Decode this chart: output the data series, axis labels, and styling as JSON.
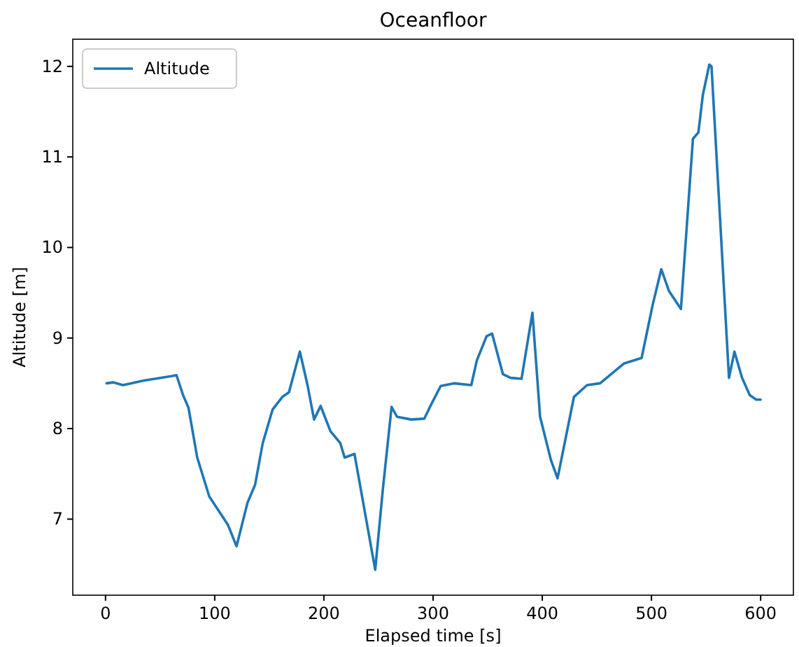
{
  "chart_data": {
    "type": "line",
    "title": "Oceanfloor",
    "xlabel": "Elapsed time [s]",
    "ylabel": "Altitude [m]",
    "legend": "top left",
    "xlim": [
      -30,
      630
    ],
    "ylim": [
      6.16,
      12.3
    ],
    "xticks": [
      0,
      100,
      200,
      300,
      400,
      500,
      600
    ],
    "yticks": [
      7,
      8,
      9,
      10,
      11,
      12
    ],
    "series": [
      {
        "name": "Altitude",
        "color": "#1f77b4",
        "x": [
          1,
          7,
          16,
          35,
          61,
          65,
          71,
          76,
          84,
          95,
          112,
          120,
          130,
          137,
          144,
          153,
          162,
          168,
          178,
          185,
          191,
          197,
          206,
          215,
          219,
          228,
          247,
          254,
          262,
          267,
          280,
          292,
          298,
          307,
          319,
          335,
          340,
          349,
          354,
          364,
          371,
          381,
          391,
          398,
          408,
          414,
          429,
          441,
          453,
          475,
          491,
          501,
          509,
          516,
          527,
          538,
          543,
          547,
          553,
          555,
          571,
          576,
          583,
          590,
          596,
          600
        ],
        "values": [
          8.5,
          8.51,
          8.48,
          8.53,
          8.58,
          8.59,
          8.37,
          8.23,
          7.68,
          7.25,
          6.94,
          6.7,
          7.18,
          7.38,
          7.84,
          8.21,
          8.35,
          8.4,
          8.85,
          8.48,
          8.1,
          8.25,
          7.97,
          7.84,
          7.68,
          7.72,
          6.44,
          7.33,
          8.24,
          8.13,
          8.1,
          8.11,
          8.26,
          8.47,
          8.5,
          8.48,
          8.75,
          9.02,
          9.05,
          8.6,
          8.56,
          8.55,
          9.28,
          8.13,
          7.65,
          7.45,
          8.35,
          8.48,
          8.5,
          8.72,
          8.78,
          9.36,
          9.76,
          9.52,
          9.32,
          11.2,
          11.27,
          11.68,
          12.02,
          12.0,
          8.56,
          8.85,
          8.56,
          8.37,
          8.32,
          8.32
        ]
      }
    ]
  }
}
